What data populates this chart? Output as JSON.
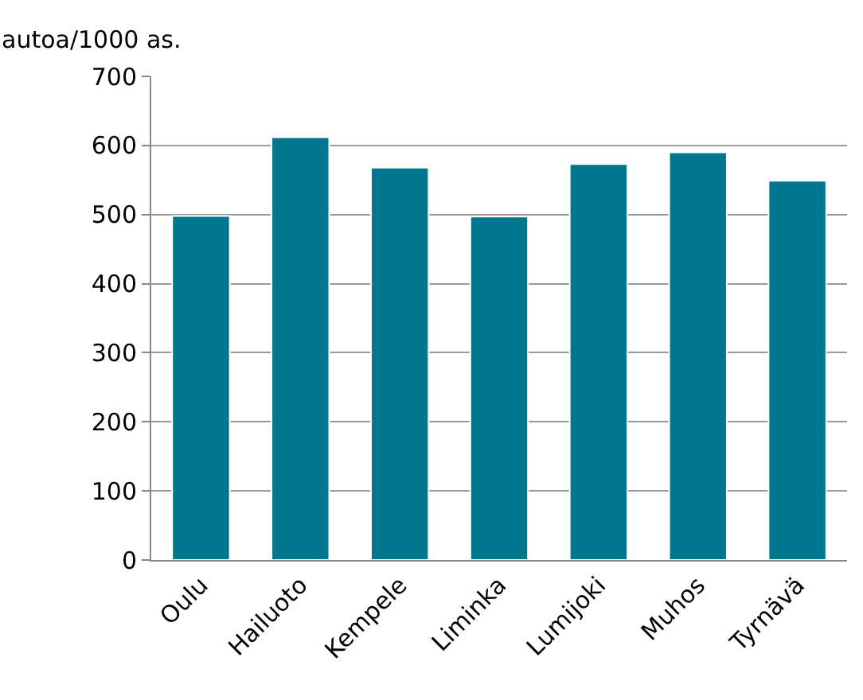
{
  "chart_data": {
    "type": "bar",
    "ylabel": "autoa/1000 as.",
    "categories": [
      "Oulu",
      "Hailuoto",
      "Kempele",
      "Liminka",
      "Lumijoki",
      "Muhos",
      "Tyrnävä"
    ],
    "values": [
      498,
      612,
      568,
      497,
      573,
      590,
      549
    ],
    "color": "#00778f",
    "ylim": [
      0,
      700
    ],
    "yticks": [
      0,
      100,
      200,
      300,
      400,
      500,
      600,
      700
    ],
    "grid": "y"
  }
}
